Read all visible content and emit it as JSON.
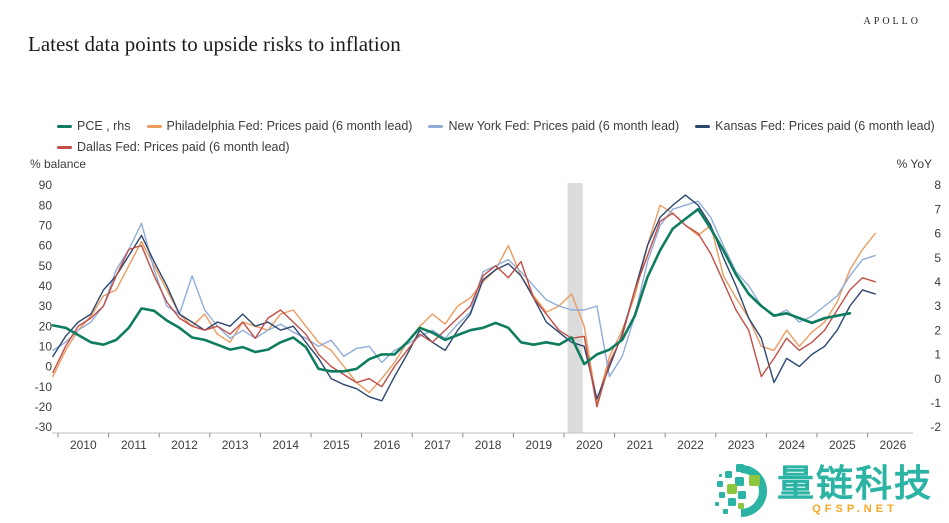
{
  "header": {
    "brand": "APOLLO",
    "title": "Latest data points to upside risks to inflation"
  },
  "chart_data": {
    "type": "line",
    "title": "Latest data points to upside risks to inflation",
    "left_axis": {
      "label": "% balance",
      "min": -30,
      "max": 90,
      "ticks": [
        90,
        80,
        70,
        60,
        50,
        40,
        30,
        20,
        10,
        0,
        -10,
        -20,
        -30
      ]
    },
    "right_axis": {
      "label": "% YoY",
      "min": -2,
      "max": 8,
      "ticks": [
        8,
        7,
        6,
        5,
        4,
        3,
        2,
        1,
        0,
        -1,
        -2
      ]
    },
    "x_axis": {
      "min": 2009.8,
      "max": 2026.9,
      "tick_years": [
        2010,
        2011,
        2012,
        2013,
        2014,
        2015,
        2016,
        2017,
        2018,
        2019,
        2020,
        2021,
        2022,
        2023,
        2024,
        2025,
        2026
      ]
    },
    "recession_band": {
      "from": 2020.07,
      "to": 2020.37,
      "color": "#dcdcdc"
    },
    "grid": false,
    "legend_position": "top-left",
    "x_start": 2009.9,
    "x_step": 0.25,
    "series": [
      {
        "name": "PCE , rhs",
        "axis": "right",
        "color": "#0e7c5e",
        "width": 2.6,
        "values": [
          2.2,
          2.1,
          1.8,
          1.5,
          1.4,
          1.6,
          2.1,
          2.9,
          2.8,
          2.4,
          2.1,
          1.7,
          1.6,
          1.4,
          1.2,
          1.3,
          1.1,
          1.2,
          1.5,
          1.7,
          1.3,
          0.4,
          0.3,
          0.3,
          0.4,
          0.8,
          1.0,
          1.0,
          1.5,
          2.1,
          1.9,
          1.6,
          1.8,
          2.0,
          2.1,
          2.3,
          2.1,
          1.5,
          1.4,
          1.5,
          1.4,
          1.7,
          0.6,
          1.0,
          1.2,
          1.6,
          2.6,
          4.2,
          5.3,
          6.2,
          6.6,
          7.0,
          6.2,
          5.3,
          4.3,
          3.5,
          3.0,
          2.6,
          2.7,
          2.5,
          2.3,
          2.5,
          2.6,
          2.7
        ]
      },
      {
        "name": "Philadelphia Fed: Prices paid (6 month lead)",
        "axis": "left",
        "color": "#ec9c5f",
        "width": 1.4,
        "values": [
          -5,
          8,
          18,
          25,
          35,
          38,
          50,
          62,
          50,
          38,
          26,
          20,
          26,
          16,
          12,
          22,
          20,
          18,
          26,
          28,
          20,
          12,
          8,
          0,
          -8,
          -13,
          -6,
          2,
          12,
          20,
          26,
          21,
          30,
          34,
          42,
          48,
          60,
          45,
          35,
          27,
          30,
          36,
          20,
          -18,
          5,
          18,
          35,
          60,
          80,
          76,
          70,
          65,
          70,
          45,
          34,
          24,
          10,
          8,
          18,
          10,
          17,
          22,
          32,
          48,
          58,
          66
        ]
      },
      {
        "name": "New York Fed: Prices paid (6 month lead)",
        "axis": "left",
        "color": "#8fadd8",
        "width": 1.4,
        "values": [
          8,
          12,
          18,
          22,
          30,
          48,
          58,
          71,
          48,
          30,
          26,
          45,
          28,
          20,
          14,
          18,
          14,
          18,
          21,
          17,
          14,
          10,
          13,
          5,
          9,
          10,
          2,
          8,
          11,
          15,
          18,
          14,
          21,
          27,
          47,
          50,
          53,
          47,
          40,
          33,
          30,
          28,
          28,
          30,
          -5,
          5,
          25,
          52,
          70,
          78,
          80,
          82,
          74,
          60,
          47,
          40,
          30,
          25,
          28,
          22,
          25,
          30,
          35,
          45,
          53,
          55
        ]
      },
      {
        "name": "Kansas Fed: Prices paid (6 month lead)",
        "axis": "left",
        "color": "#2c4770",
        "width": 1.4,
        "values": [
          5,
          15,
          22,
          26,
          38,
          45,
          55,
          65,
          52,
          40,
          26,
          22,
          18,
          22,
          20,
          26,
          20,
          22,
          18,
          20,
          12,
          4,
          -6,
          -9,
          -11,
          -15,
          -17,
          -5,
          6,
          18,
          12,
          8,
          18,
          26,
          43,
          48,
          51,
          45,
          34,
          22,
          17,
          12,
          10,
          -16,
          0,
          16,
          38,
          60,
          74,
          80,
          85,
          80,
          70,
          54,
          40,
          24,
          14,
          -8,
          4,
          0,
          6,
          10,
          18,
          30,
          38,
          36
        ]
      },
      {
        "name": "Dallas Fed: Prices paid (6 month lead)",
        "axis": "left",
        "color": "#c14f48",
        "width": 1.4,
        "values": [
          -3,
          10,
          20,
          24,
          30,
          45,
          58,
          60,
          45,
          32,
          24,
          20,
          18,
          20,
          16,
          22,
          14,
          24,
          28,
          22,
          16,
          6,
          0,
          -4,
          -8,
          -6,
          -10,
          0,
          8,
          16,
          12,
          18,
          24,
          30,
          45,
          50,
          44,
          52,
          34,
          26,
          18,
          14,
          15,
          -20,
          2,
          15,
          38,
          55,
          72,
          76,
          70,
          66,
          56,
          42,
          28,
          18,
          -5,
          4,
          14,
          8,
          12,
          18,
          28,
          38,
          44,
          42
        ]
      }
    ],
    "legend_rows": [
      [
        0,
        1,
        2,
        3
      ],
      [
        4
      ]
    ]
  },
  "watermark": {
    "name": "量链科技",
    "site": "QFSP.NET",
    "teal": "#2bb3a4",
    "green": "#8dc63f",
    "orange": "#f7a624"
  }
}
